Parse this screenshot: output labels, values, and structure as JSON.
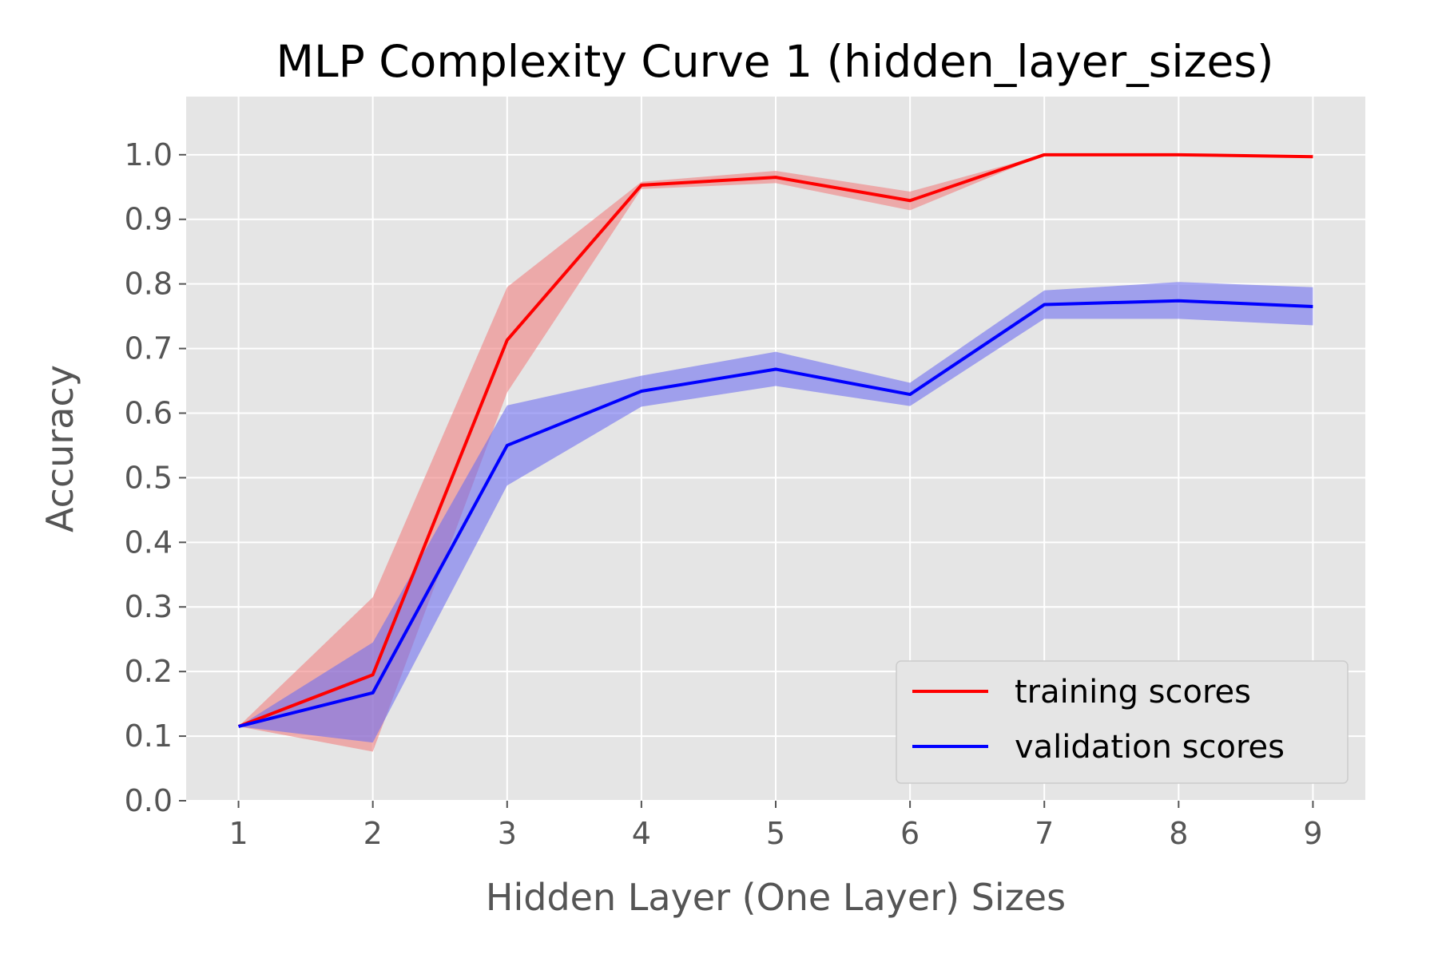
{
  "chart_data": {
    "type": "line",
    "title": "MLP Complexity Curve 1 (hidden_layer_sizes)",
    "xlabel": "Hidden Layer (One Layer) Sizes",
    "ylabel": "Accuracy",
    "x": [
      1,
      2,
      3,
      4,
      5,
      6,
      7,
      8,
      9
    ],
    "xlim": [
      0.61,
      9.39
    ],
    "ylim": [
      0.0,
      1.09
    ],
    "xticks": [
      "1",
      "2",
      "3",
      "4",
      "5",
      "6",
      "7",
      "8",
      "9"
    ],
    "yticks": [
      "0.0",
      "0.1",
      "0.2",
      "0.3",
      "0.4",
      "0.5",
      "0.6",
      "0.7",
      "0.8",
      "0.9",
      "1.0"
    ],
    "grid": true,
    "legend_position": "lower right",
    "series": [
      {
        "name": "training scores",
        "color": "#ff0000",
        "band_color": "#f08080",
        "values": [
          0.115,
          0.195,
          0.713,
          0.953,
          0.965,
          0.929,
          1.0,
          1.0,
          0.997
        ],
        "upper": [
          0.115,
          0.315,
          0.795,
          0.958,
          0.975,
          0.943,
          1.0,
          1.0,
          0.998
        ],
        "lower": [
          0.115,
          0.076,
          0.632,
          0.947,
          0.956,
          0.914,
          1.0,
          1.0,
          0.996
        ]
      },
      {
        "name": "validation scores",
        "color": "#0000ff",
        "band_color": "#6f6ff0",
        "values": [
          0.115,
          0.167,
          0.55,
          0.634,
          0.668,
          0.629,
          0.768,
          0.774,
          0.765
        ],
        "upper": [
          0.115,
          0.245,
          0.612,
          0.658,
          0.695,
          0.647,
          0.79,
          0.803,
          0.795
        ],
        "lower": [
          0.115,
          0.09,
          0.488,
          0.61,
          0.642,
          0.611,
          0.746,
          0.746,
          0.736
        ]
      }
    ]
  }
}
